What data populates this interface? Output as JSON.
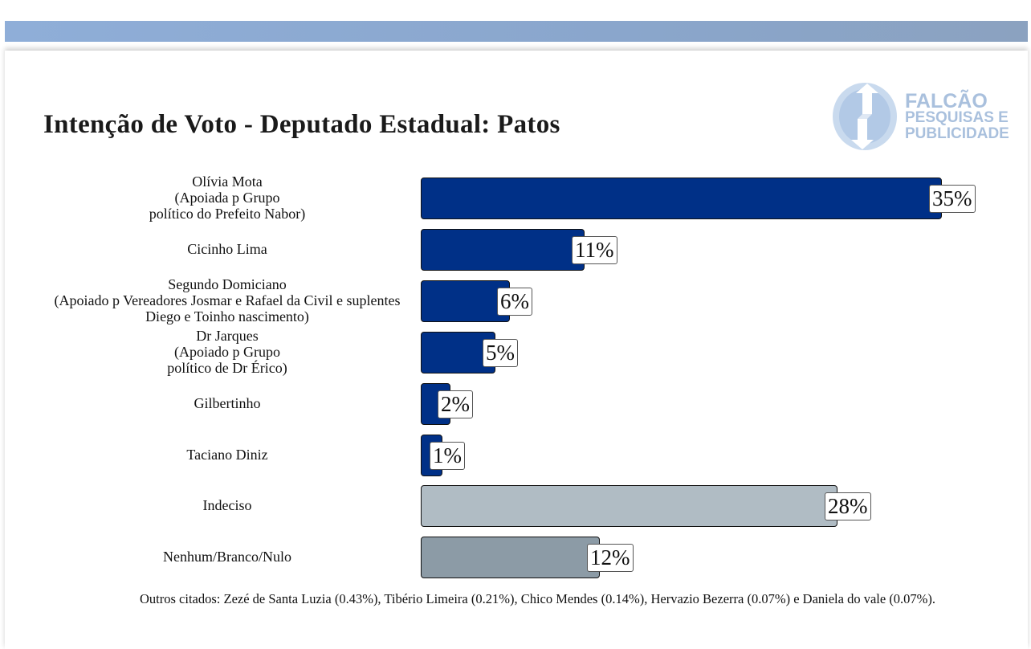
{
  "chart_data": {
    "type": "bar",
    "orientation": "horizontal",
    "title": "Intenção de Voto - Deputado Estadual: Patos",
    "categories": [
      [
        "Olívia Mota",
        "(Apoiada p Grupo",
        "político do Prefeito Nabor)"
      ],
      [
        "Cicinho Lima"
      ],
      [
        "Segundo Domiciano",
        "(Apoiado p Vereadores Josmar e Rafael da Civil e suplentes",
        "Diego e Toinho nascimento)"
      ],
      [
        "Dr Jarques",
        "(Apoiado p Grupo",
        "político de Dr Érico)"
      ],
      [
        "Gilbertinho"
      ],
      [
        "Taciano Diniz"
      ],
      [
        "Indeciso"
      ],
      [
        "Nenhum/Branco/Nulo"
      ]
    ],
    "values": [
      35,
      11,
      6,
      5,
      2,
      1,
      28,
      12
    ],
    "value_labels": [
      "35%",
      "11%",
      "6%",
      "5%",
      "2%",
      "1%",
      "28%",
      "12%"
    ],
    "bar_colors": [
      "#003087",
      "#003087",
      "#003087",
      "#003087",
      "#003087",
      "#003087",
      "#b0bcc4",
      "#8c9ba6"
    ],
    "xlim": [
      0,
      35
    ],
    "xlabel": "",
    "ylabel": "",
    "grid": false,
    "footnote": "Outros citados: Zezé de Santa Luzia (0.43%), Tibério Limeira (0.21%), Chico Mendes (0.14%), Hervazio Bezerra (0.07%) e Daniela do vale (0.07%)."
  },
  "logo": {
    "line1": "FALCÃO",
    "line2": "PESQUISAS E",
    "line3": "PUBLICIDADE"
  }
}
